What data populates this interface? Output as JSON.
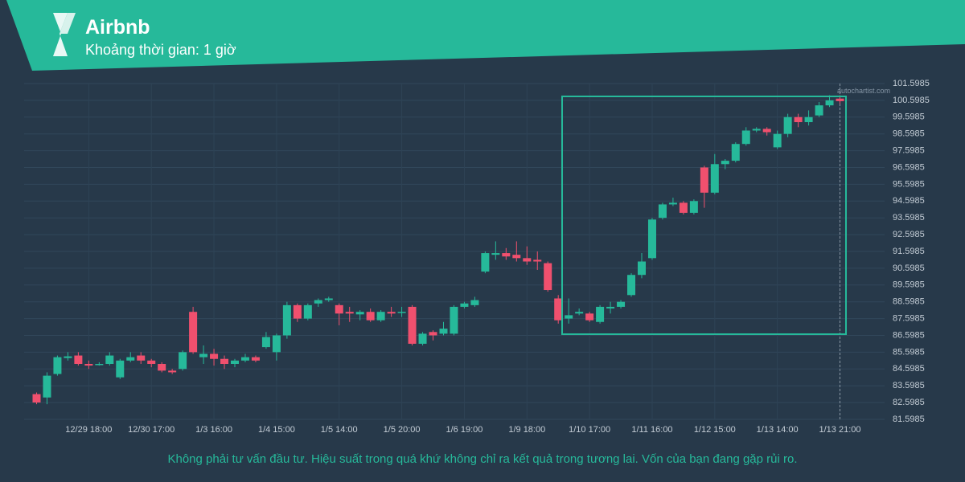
{
  "chart_data": {
    "type": "candlestick",
    "title": "Airbnb",
    "subtitle": "Khoảng thời gian: 1 giờ",
    "watermark": "autochartist.com",
    "footnote": "Không phải tư vấn đầu tư. Hiệu suất trong quá khứ không chỉ ra kết quả trong tương lai. Vốn của bạn đang gặp rủi ro.",
    "up_color": "#26b99a",
    "down_color": "#f0506e",
    "grid": true,
    "categories": [
      null,
      null,
      null,
      null,
      null,
      "12/29 18:00",
      null,
      null,
      null,
      null,
      null,
      "12/30 17:00",
      null,
      null,
      null,
      null,
      null,
      "1/3 16:00",
      null,
      null,
      null,
      null,
      null,
      "1/4 15:00",
      null,
      null,
      null,
      null,
      null,
      "1/5 14:00",
      null,
      null,
      null,
      null,
      null,
      "1/5 20:00",
      null,
      null,
      null,
      null,
      null,
      "1/6 19:00",
      null,
      null,
      null,
      null,
      null,
      "1/9 18:00",
      null,
      null,
      null,
      null,
      null,
      "1/10 17:00",
      null,
      null,
      null,
      null,
      null,
      "1/11 16:00",
      null,
      null,
      null,
      null,
      null,
      "1/12 15:00",
      null,
      null,
      null,
      null,
      null,
      "1/13 14:00",
      null,
      null,
      null,
      null,
      null,
      "1/13 21:00"
    ],
    "open": [
      83.1,
      82.9,
      84.3,
      85.25,
      85.4,
      84.9,
      84.85,
      84.9,
      84.1,
      85.1,
      85.4,
      85.1,
      84.9,
      84.5,
      84.6,
      88.0,
      85.3,
      85.5,
      85.2,
      84.9,
      85.1,
      85.3,
      85.9,
      85.6,
      86.6,
      88.4,
      87.6,
      88.5,
      88.7,
      88.4,
      88.0,
      87.85,
      88.0,
      87.5,
      88.0,
      87.95,
      88.3,
      86.1,
      86.8,
      86.7,
      86.7,
      88.3,
      88.4,
      90.4,
      91.4,
      91.5,
      91.4,
      91.2,
      91.1,
      90.9,
      88.8,
      87.6,
      87.9,
      87.9,
      87.4,
      88.2,
      88.3,
      89.0,
      90.2,
      91.2,
      93.6,
      94.4,
      94.5,
      93.9,
      96.6,
      95.1,
      96.8,
      97.0,
      98.0,
      98.8,
      98.9,
      97.8,
      98.6,
      99.6,
      99.3,
      99.7,
      100.3,
      100.7
    ],
    "high": [
      83.2,
      84.4,
      85.4,
      85.6,
      85.6,
      85.1,
      85.0,
      85.6,
      85.2,
      85.6,
      85.6,
      85.2,
      85.0,
      84.6,
      85.7,
      88.3,
      86.0,
      85.8,
      85.4,
      85.2,
      85.5,
      85.4,
      86.8,
      86.7,
      88.6,
      88.5,
      88.5,
      88.8,
      88.9,
      88.5,
      88.3,
      88.1,
      88.2,
      88.1,
      88.3,
      88.3,
      88.4,
      86.8,
      86.9,
      87.4,
      88.4,
      88.6,
      88.9,
      91.6,
      92.2,
      91.8,
      92.2,
      91.9,
      91.6,
      91.0,
      89.0,
      88.8,
      88.2,
      88.0,
      88.4,
      88.6,
      88.7,
      90.3,
      91.5,
      93.6,
      94.5,
      94.8,
      94.6,
      94.7,
      96.7,
      97.4,
      97.1,
      98.1,
      99.0,
      99.0,
      99.0,
      98.8,
      99.8,
      99.8,
      100.0,
      100.5,
      100.9,
      100.9
    ],
    "low": [
      82.5,
      82.5,
      84.2,
      85.1,
      84.8,
      84.6,
      84.8,
      84.8,
      84.0,
      85.0,
      84.9,
      84.7,
      84.4,
      84.3,
      84.5,
      85.5,
      84.9,
      84.8,
      84.6,
      84.7,
      85.0,
      85.0,
      85.8,
      85.1,
      86.4,
      87.4,
      87.5,
      88.3,
      88.6,
      87.2,
      87.4,
      87.5,
      87.4,
      87.4,
      87.7,
      87.7,
      86.0,
      86.0,
      86.3,
      86.6,
      86.6,
      88.2,
      88.3,
      90.3,
      91.1,
      91.1,
      91.0,
      90.8,
      90.5,
      89.2,
      87.3,
      87.3,
      87.8,
      87.4,
      87.3,
      87.9,
      88.2,
      88.9,
      90.0,
      91.1,
      93.5,
      94.3,
      93.8,
      93.8,
      94.2,
      95.0,
      96.5,
      96.9,
      97.9,
      98.7,
      98.5,
      97.7,
      98.4,
      99.0,
      99.1,
      99.6,
      100.2,
      100.4
    ],
    "close": [
      82.6,
      84.2,
      85.3,
      85.35,
      84.9,
      84.8,
      84.9,
      85.4,
      85.1,
      85.3,
      85.1,
      84.9,
      84.5,
      84.4,
      85.6,
      85.6,
      85.5,
      85.2,
      84.9,
      85.1,
      85.3,
      85.1,
      86.5,
      86.6,
      88.4,
      87.6,
      88.4,
      88.7,
      88.8,
      87.9,
      87.9,
      88.0,
      87.5,
      88.0,
      87.9,
      88.0,
      86.1,
      86.7,
      86.6,
      87.0,
      88.3,
      88.5,
      88.7,
      91.5,
      91.5,
      91.3,
      91.2,
      91.0,
      91.0,
      89.3,
      87.5,
      87.8,
      88.0,
      87.5,
      88.3,
      88.3,
      88.6,
      90.2,
      91.0,
      93.5,
      94.4,
      94.5,
      93.9,
      94.6,
      95.1,
      96.8,
      97.0,
      98.0,
      98.8,
      98.9,
      98.7,
      98.6,
      99.6,
      99.3,
      99.6,
      100.3,
      100.6,
      100.55
    ],
    "ylim": [
      81.5985,
      101.5985
    ],
    "yticks": [
      81.5985,
      82.5985,
      83.5985,
      84.5985,
      85.5985,
      86.5985,
      87.5985,
      88.5985,
      89.5985,
      90.5985,
      91.5985,
      92.5985,
      93.5985,
      94.5985,
      95.5985,
      96.5985,
      97.5985,
      98.5985,
      99.5985,
      100.5985,
      101.5985
    ]
  }
}
